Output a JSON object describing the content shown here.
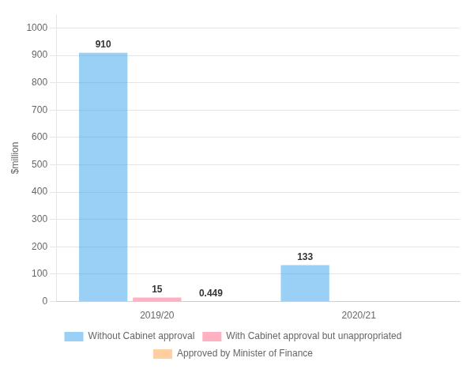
{
  "chart_data": {
    "type": "bar",
    "categories": [
      "2019/20",
      "2020/21"
    ],
    "series": [
      {
        "name": "Without Cabinet approval",
        "values": [
          910,
          133
        ],
        "value_labels": [
          "910",
          "133"
        ]
      },
      {
        "name": "With Cabinet approval but unappropriated",
        "values": [
          15,
          0
        ],
        "value_labels": [
          "15",
          null
        ]
      },
      {
        "name": "Approved by Minister of Finance",
        "values": [
          0.449,
          0
        ],
        "value_labels": [
          "0.449",
          null
        ]
      }
    ],
    "ylabel": "$million",
    "ylim": [
      0,
      1050
    ],
    "yticks": [
      0,
      100,
      200,
      300,
      400,
      500,
      600,
      700,
      800,
      900,
      1000
    ],
    "grid": true,
    "legend": "bottom",
    "data_labels": true
  }
}
